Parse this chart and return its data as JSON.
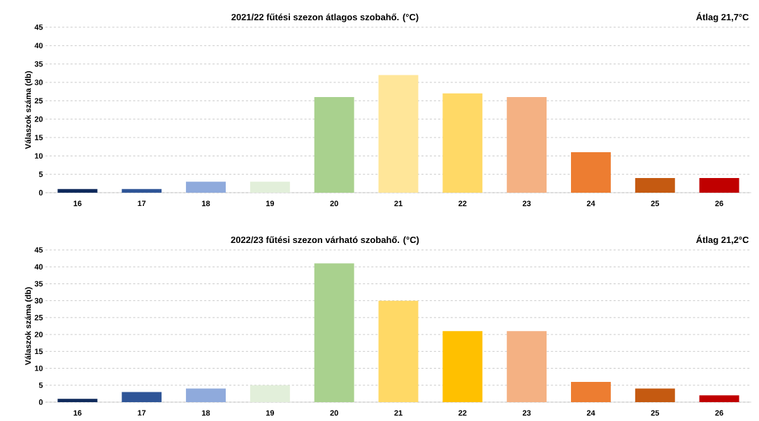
{
  "chart_data": [
    {
      "type": "bar",
      "title": "2021/22  fűtési szezon átlagos szobahő. (°C)",
      "ylabel": "Válaszok  száma (db)",
      "annotations": [
        "Átlag 21,7°C"
      ],
      "categories": [
        "16",
        "17",
        "18",
        "19",
        "20",
        "21",
        "22",
        "23",
        "24",
        "25",
        "26"
      ],
      "values": [
        1,
        1,
        3,
        3,
        26,
        32,
        27,
        26,
        11,
        4,
        4
      ],
      "colors": [
        "#0f2a5c",
        "#2f5597",
        "#8faadc",
        "#e2efda",
        "#a9d18e",
        "#ffe699",
        "#ffd966",
        "#f4b183",
        "#ed7d31",
        "#c55a11",
        "#c00000"
      ],
      "ylim": [
        0,
        45
      ],
      "yticks": [
        0,
        5,
        10,
        15,
        20,
        25,
        30,
        35,
        40,
        45
      ],
      "grid": "y"
    },
    {
      "type": "bar",
      "title": "2022/23  fűtési szezon várható szobahő. (°C)",
      "ylabel": "Válaszok  száma (db)",
      "annotations": [
        "Átlag 21,2°C"
      ],
      "categories": [
        "16",
        "17",
        "18",
        "19",
        "20",
        "21",
        "22",
        "23",
        "24",
        "25",
        "26"
      ],
      "values": [
        1,
        3,
        4,
        5,
        41,
        30,
        21,
        21,
        6,
        4,
        2
      ],
      "colors": [
        "#0f2a5c",
        "#2f5597",
        "#8faadc",
        "#e2efda",
        "#a9d18e",
        "#ffd966",
        "#ffc000",
        "#f4b183",
        "#ed7d31",
        "#c55a11",
        "#c00000"
      ],
      "ylim": [
        0,
        45
      ],
      "yticks": [
        0,
        5,
        10,
        15,
        20,
        25,
        30,
        35,
        40,
        45
      ],
      "grid": "y"
    }
  ]
}
